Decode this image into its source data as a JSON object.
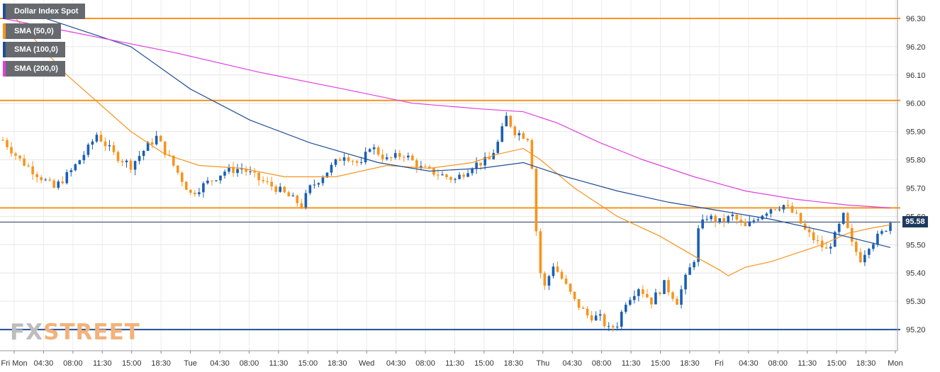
{
  "legend": {
    "instrument": "Dollar Index Spot",
    "sma50": "SMA (50,0)",
    "sma100": "SMA (100,0)",
    "sma200": "SMA (200,0)"
  },
  "watermark": {
    "part1": "FX",
    "part2": "STREET"
  },
  "last_price": "95.58",
  "colors": {
    "up_candle": "#1a5fb4",
    "down_candle": "#f7941d",
    "sma50": "#f7941d",
    "sma100": "#1f4e96",
    "sma200": "#e040e0",
    "resistance": "#f7941d",
    "support": "#1f4e96",
    "price_line": "#1f3a5f"
  },
  "chart_data": {
    "type": "candlestick",
    "title": "Dollar Index Spot",
    "ylim": [
      95.12,
      96.36
    ],
    "y_ticks": [
      "96.30",
      "96.20",
      "96.10",
      "96.00",
      "95.90",
      "95.80",
      "95.70",
      "95.60",
      "95.50",
      "95.40",
      "95.30",
      "95.20"
    ],
    "x_ticks": [
      "Fri Mon",
      "04:30",
      "08:00",
      "11:30",
      "15:00",
      "18:30",
      "Tue",
      "04:30",
      "08:00",
      "11:30",
      "15:00",
      "18:30",
      "Wed",
      "04:30",
      "08:00",
      "11:30",
      "15:00",
      "18:30",
      "Thu",
      "04:30",
      "08:00",
      "11:30",
      "15:00",
      "18:30",
      "Fri",
      "04:30",
      "08:00",
      "11:30",
      "15:00",
      "18:30",
      "Mon"
    ],
    "grid": true,
    "horizontal_levels": [
      {
        "value": 96.3,
        "kind": "resistance"
      },
      {
        "value": 96.01,
        "kind": "resistance"
      },
      {
        "value": 95.63,
        "kind": "resistance"
      },
      {
        "value": 95.2,
        "kind": "support"
      }
    ],
    "last_value": 95.58,
    "close_path": [
      [
        0,
        95.87
      ],
      [
        4,
        95.8
      ],
      [
        8,
        95.75
      ],
      [
        12,
        95.7
      ],
      [
        16,
        95.76
      ],
      [
        20,
        95.84
      ],
      [
        22,
        95.89
      ],
      [
        26,
        95.82
      ],
      [
        30,
        95.78
      ],
      [
        34,
        95.85
      ],
      [
        36,
        95.88
      ],
      [
        40,
        95.78
      ],
      [
        44,
        95.68
      ],
      [
        48,
        95.72
      ],
      [
        52,
        95.76
      ],
      [
        56,
        95.77
      ],
      [
        60,
        95.73
      ],
      [
        64,
        95.7
      ],
      [
        68,
        95.66
      ],
      [
        70,
        95.64
      ],
      [
        72,
        95.7
      ],
      [
        76,
        95.76
      ],
      [
        80,
        95.82
      ],
      [
        84,
        95.78
      ],
      [
        86,
        95.85
      ],
      [
        90,
        95.8
      ],
      [
        94,
        95.82
      ],
      [
        98,
        95.77
      ],
      [
        102,
        95.75
      ],
      [
        106,
        95.73
      ],
      [
        110,
        95.78
      ],
      [
        114,
        95.8
      ],
      [
        116,
        95.86
      ],
      [
        118,
        95.95
      ],
      [
        120,
        95.9
      ],
      [
        123,
        95.88
      ],
      [
        124,
        95.78
      ],
      [
        125,
        95.55
      ],
      [
        126,
        95.4
      ],
      [
        127,
        95.35
      ],
      [
        129,
        95.43
      ],
      [
        131,
        95.38
      ],
      [
        134,
        95.3
      ],
      [
        137,
        95.25
      ],
      [
        140,
        95.24
      ],
      [
        142,
        95.2
      ],
      [
        144,
        95.22
      ],
      [
        146,
        95.3
      ],
      [
        149,
        95.35
      ],
      [
        152,
        95.3
      ],
      [
        155,
        95.36
      ],
      [
        158,
        95.3
      ],
      [
        160,
        95.38
      ],
      [
        162,
        95.45
      ],
      [
        163,
        95.55
      ],
      [
        165,
        95.6
      ],
      [
        168,
        95.58
      ],
      [
        171,
        95.6
      ],
      [
        174,
        95.56
      ],
      [
        177,
        95.6
      ],
      [
        180,
        95.63
      ],
      [
        183,
        95.64
      ],
      [
        186,
        95.6
      ],
      [
        188,
        95.55
      ],
      [
        190,
        95.52
      ],
      [
        193,
        95.48
      ],
      [
        195,
        95.53
      ],
      [
        197,
        95.6
      ],
      [
        199,
        95.5
      ],
      [
        201,
        95.45
      ],
      [
        203,
        95.5
      ],
      [
        206,
        95.54
      ],
      [
        208,
        95.58
      ]
    ],
    "sma50": [
      [
        0,
        96.35
      ],
      [
        15,
        96.1
      ],
      [
        30,
        95.9
      ],
      [
        38,
        95.82
      ],
      [
        46,
        95.78
      ],
      [
        56,
        95.77
      ],
      [
        66,
        95.74
      ],
      [
        78,
        95.74
      ],
      [
        90,
        95.78
      ],
      [
        100,
        95.77
      ],
      [
        110,
        95.79
      ],
      [
        116,
        95.82
      ],
      [
        122,
        95.84
      ],
      [
        126,
        95.8
      ],
      [
        134,
        95.7
      ],
      [
        144,
        95.6
      ],
      [
        154,
        95.53
      ],
      [
        162,
        95.46
      ],
      [
        168,
        95.41
      ],
      [
        170,
        95.39
      ],
      [
        174,
        95.42
      ],
      [
        180,
        95.44
      ],
      [
        186,
        95.47
      ],
      [
        192,
        95.5
      ],
      [
        198,
        95.54
      ],
      [
        204,
        95.56
      ],
      [
        208,
        95.57
      ]
    ],
    "sma100": [
      [
        0,
        96.35
      ],
      [
        14,
        96.28
      ],
      [
        30,
        96.2
      ],
      [
        44,
        96.05
      ],
      [
        58,
        95.94
      ],
      [
        72,
        95.86
      ],
      [
        88,
        95.79
      ],
      [
        100,
        95.76
      ],
      [
        112,
        95.77
      ],
      [
        122,
        95.79
      ],
      [
        132,
        95.74
      ],
      [
        144,
        95.69
      ],
      [
        156,
        95.65
      ],
      [
        168,
        95.62
      ],
      [
        180,
        95.59
      ],
      [
        192,
        95.55
      ],
      [
        200,
        95.52
      ],
      [
        208,
        95.49
      ]
    ],
    "sma200": [
      [
        0,
        96.3
      ],
      [
        20,
        96.24
      ],
      [
        40,
        96.18
      ],
      [
        60,
        96.11
      ],
      [
        80,
        96.05
      ],
      [
        96,
        96.0
      ],
      [
        112,
        95.98
      ],
      [
        122,
        95.97
      ],
      [
        130,
        95.93
      ],
      [
        140,
        95.86
      ],
      [
        150,
        95.8
      ],
      [
        162,
        95.74
      ],
      [
        174,
        95.69
      ],
      [
        186,
        95.66
      ],
      [
        198,
        95.64
      ],
      [
        208,
        95.63
      ]
    ]
  }
}
